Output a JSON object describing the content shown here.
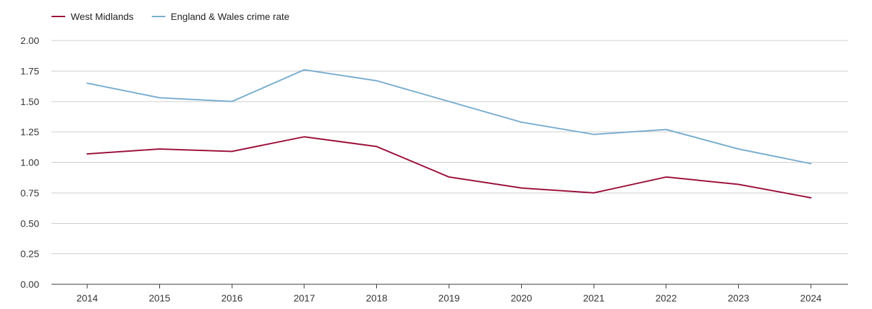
{
  "chart_data": {
    "type": "line",
    "categories": [
      "2014",
      "2015",
      "2016",
      "2017",
      "2018",
      "2019",
      "2020",
      "2021",
      "2022",
      "2023",
      "2024"
    ],
    "series": [
      {
        "name": "West Midlands",
        "color": "#9b0d37",
        "values": [
          1.07,
          1.11,
          1.09,
          1.21,
          1.13,
          0.88,
          0.79,
          0.75,
          0.88,
          0.82,
          0.71
        ]
      },
      {
        "name": "England & Wales crime rate",
        "color": "#78adcf",
        "values": [
          1.65,
          1.53,
          1.5,
          1.76,
          1.67,
          1.5,
          1.33,
          1.23,
          1.27,
          1.11,
          0.99
        ]
      }
    ],
    "ylim": [
      0,
      2.0
    ],
    "yticks": [
      "0.00",
      "0.25",
      "0.50",
      "0.75",
      "1.00",
      "1.25",
      "1.50",
      "1.75",
      "2.00"
    ],
    "grid": true,
    "legend_position": "top-left"
  }
}
